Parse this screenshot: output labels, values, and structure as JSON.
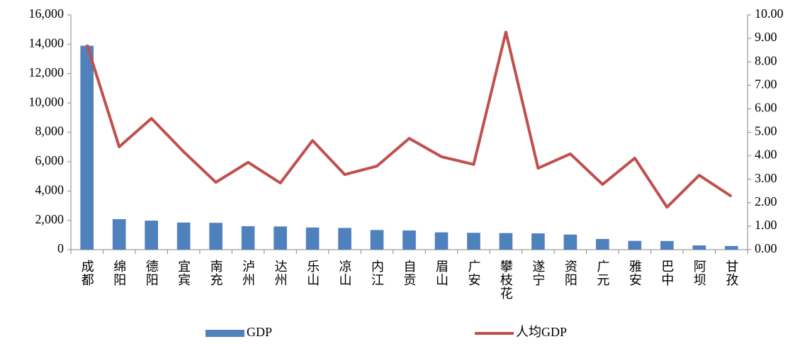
{
  "chart_data": {
    "type": "bar",
    "categories": [
      "成都",
      "绵阳",
      "德阳",
      "宜宾",
      "南充",
      "泸州",
      "达州",
      "乐山",
      "凉山",
      "内江",
      "自贡",
      "眉山",
      "广安",
      "攀枝花",
      "遂宁",
      "资阳",
      "广元",
      "雅安",
      "巴中",
      "阿坝",
      "甘孜"
    ],
    "series": [
      {
        "name": "GDP",
        "type": "bar",
        "color": "#4f81bd",
        "values": [
          13900,
          2080,
          1980,
          1850,
          1830,
          1600,
          1580,
          1510,
          1480,
          1340,
          1310,
          1180,
          1150,
          1130,
          1110,
          1030,
          730,
          600,
          590,
          290,
          250
        ]
      },
      {
        "name": "人均GDP",
        "type": "line",
        "axis": "y2",
        "color": "#c0504d",
        "values": [
          8.73,
          4.38,
          5.59,
          4.17,
          2.87,
          3.72,
          2.84,
          4.65,
          3.2,
          3.56,
          4.74,
          3.96,
          3.63,
          9.27,
          3.47,
          4.08,
          2.78,
          3.9,
          1.81,
          3.17,
          2.27
        ]
      }
    ],
    "ylim": [
      0,
      16000
    ],
    "yticks": [
      0,
      {
        "value": 2000,
        "label": "2,000"
      },
      {
        "value": 4000,
        "label": "4,000"
      },
      {
        "value": 6000,
        "label": "6,000"
      },
      {
        "value": 8000,
        "label": "8,000"
      },
      {
        "value": 10000,
        "label": "10,000"
      },
      {
        "value": 12000,
        "label": "12,000"
      },
      {
        "value": 14000,
        "label": "14,000"
      },
      {
        "value": 16000,
        "label": "16,000"
      }
    ],
    "y2lim": [
      0,
      10
    ],
    "y2ticks": [
      {
        "value": 0,
        "label": "0.00"
      },
      {
        "value": 1,
        "label": "1.00"
      },
      {
        "value": 2,
        "label": "2.00"
      },
      {
        "value": 3,
        "label": "3.00"
      },
      {
        "value": 4,
        "label": "4.00"
      },
      {
        "value": 5,
        "label": "5.00"
      },
      {
        "value": 6,
        "label": "6.00"
      },
      {
        "value": 7,
        "label": "7.00"
      },
      {
        "value": 8,
        "label": "8.00"
      },
      {
        "value": 9,
        "label": "9.00"
      },
      {
        "value": 10,
        "label": "10.00"
      }
    ],
    "grid": false,
    "legend": "bottom"
  }
}
